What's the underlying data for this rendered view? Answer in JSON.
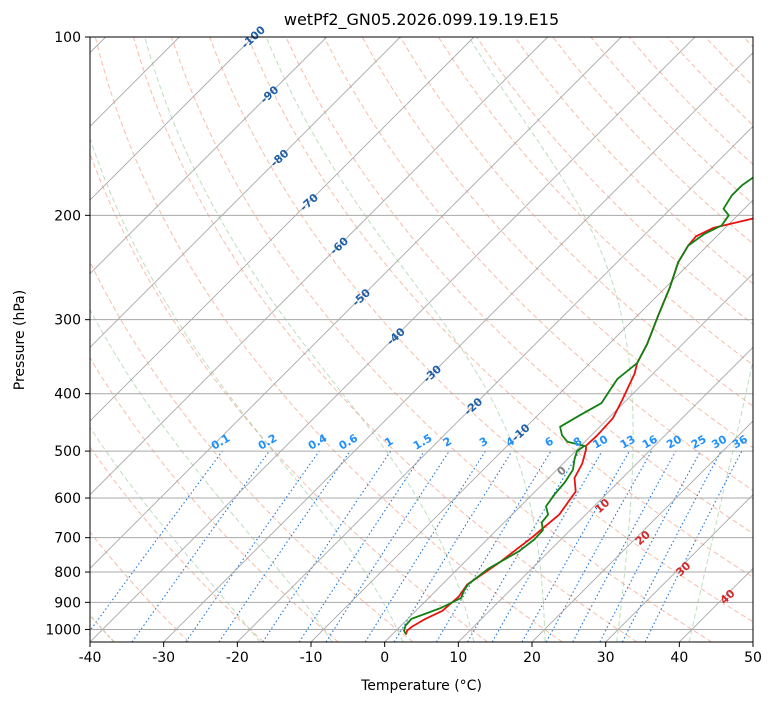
{
  "chart_data": {
    "type": "line",
    "title": "wetPf2_GN05.2026.099.19.19.E15",
    "xlabel": "Temperature (°C)",
    "ylabel": "Pressure (hPa)",
    "xlim": [
      -40,
      50
    ],
    "ylim": [
      1050,
      100
    ],
    "x_ticks": [
      -40,
      -30,
      -20,
      -10,
      0,
      10,
      20,
      30,
      40,
      50
    ],
    "y_ticks": [
      100,
      200,
      300,
      400,
      500,
      600,
      700,
      800,
      900,
      1000
    ],
    "series": [
      {
        "name": "temperature",
        "color": "#e8120f",
        "points": [
          [
            1.9,
            1020
          ],
          [
            1.5,
            1005
          ],
          [
            1.6,
            990
          ],
          [
            2.4,
            960
          ],
          [
            3.6,
            930
          ],
          [
            3.9,
            880
          ],
          [
            3.4,
            840
          ],
          [
            4.8,
            770
          ],
          [
            5.8,
            700
          ],
          [
            6.4,
            640
          ],
          [
            5.5,
            585
          ],
          [
            3.5,
            555
          ],
          [
            2.6,
            525
          ],
          [
            1.2,
            497
          ],
          [
            0.7,
            490
          ],
          [
            0.8,
            470
          ],
          [
            0.6,
            440
          ],
          [
            -0.6,
            410
          ],
          [
            -2.5,
            370
          ],
          [
            -3.6,
            355
          ],
          [
            -4.8,
            330
          ],
          [
            -7.2,
            295
          ],
          [
            -9.4,
            265
          ],
          [
            -11.7,
            240
          ],
          [
            -12.6,
            225
          ],
          [
            -12.8,
            217
          ],
          [
            -11.6,
            210
          ],
          [
            -7.8,
            203
          ],
          [
            -4,
            196
          ],
          [
            -1,
            189
          ],
          [
            3,
            177
          ],
          [
            7.3,
            165
          ],
          [
            10.8,
            154
          ],
          [
            12.5,
            148
          ],
          [
            15,
            139
          ],
          [
            18,
            129
          ],
          [
            20.5,
            120
          ],
          [
            22.3,
            113
          ],
          [
            24.7,
            104
          ],
          [
            26,
            100
          ]
        ]
      },
      {
        "name": "dewpoint",
        "color": "#128012",
        "points": [
          [
            1.9,
            1020
          ],
          [
            1.1,
            1005
          ],
          [
            0.6,
            985
          ],
          [
            0.5,
            960
          ],
          [
            3.0,
            920
          ],
          [
            4.4,
            885
          ],
          [
            3.8,
            860
          ],
          [
            3.5,
            840
          ],
          [
            4.1,
            790
          ],
          [
            5.9,
            738
          ],
          [
            6.4,
            705
          ],
          [
            6.3,
            680
          ],
          [
            5.1,
            660
          ],
          [
            4.9,
            640
          ],
          [
            3.5,
            620
          ],
          [
            3.0,
            590
          ],
          [
            2.8,
            565
          ],
          [
            2.2,
            538
          ],
          [
            0.9,
            515
          ],
          [
            0.2,
            500
          ],
          [
            0.5,
            490
          ],
          [
            -2.4,
            482
          ],
          [
            -4.0,
            470
          ],
          [
            -5.4,
            455
          ],
          [
            -4.3,
            435
          ],
          [
            -3.0,
            415
          ],
          [
            -3.6,
            395
          ],
          [
            -4.1,
            378
          ],
          [
            -3.6,
            355
          ],
          [
            -4.8,
            330
          ],
          [
            -7.2,
            295
          ],
          [
            -9.4,
            265
          ],
          [
            -11.7,
            240
          ],
          [
            -12.6,
            225
          ],
          [
            -12.0,
            215
          ],
          [
            -10.8,
            208
          ],
          [
            -11.2,
            200
          ],
          [
            -12.8,
            195
          ],
          [
            -13.5,
            185
          ],
          [
            -13.5,
            178
          ],
          [
            -12.8,
            170
          ],
          [
            -12.8,
            163
          ],
          [
            -12.2,
            150
          ],
          [
            -11.8,
            140
          ],
          [
            -9.8,
            128
          ],
          [
            -7.2,
            116
          ],
          [
            -5.0,
            107
          ],
          [
            -3.6,
            100
          ]
        ]
      }
    ],
    "isotherms": [
      -100,
      -90,
      -80,
      -70,
      -60,
      -50,
      -40,
      -30,
      -20,
      -10,
      0,
      10,
      20,
      30,
      40,
      50,
      60
    ],
    "dry_adiabats_theta_C": [
      -30,
      -20,
      -10,
      0,
      10,
      20,
      30,
      40,
      50,
      60,
      70,
      80,
      90,
      100,
      110,
      120,
      130,
      140,
      150,
      160,
      170,
      180,
      190,
      200
    ],
    "moist_adiabats_C": [
      -20,
      -10,
      0,
      10,
      20,
      30,
      40
    ],
    "mixing_ratio_lines": [
      0.1,
      0.2,
      0.4,
      0.6,
      1,
      1.5,
      2,
      3,
      4,
      6,
      8,
      10,
      13,
      16,
      20,
      25,
      30,
      36
    ],
    "isotherm_labels": [
      {
        "text": "-100",
        "p": 100
      },
      {
        "text": "-90",
        "p": 125
      },
      {
        "text": "-80",
        "p": 160
      },
      {
        "text": "-70",
        "p": 190
      },
      {
        "text": "-60",
        "p": 225
      },
      {
        "text": "-50",
        "p": 275
      },
      {
        "text": "-40",
        "p": 320
      },
      {
        "text": "-30",
        "p": 370
      },
      {
        "text": "-20",
        "p": 420
      },
      {
        "text": "-10",
        "p": 465
      }
    ],
    "wetbulb_labels": [
      {
        "text": "0",
        "T": 24,
        "p": 540
      },
      {
        "text": "10",
        "T": 29.5,
        "p": 618
      },
      {
        "text": "20",
        "T": 35,
        "p": 700
      },
      {
        "text": "30",
        "T": 40.5,
        "p": 790
      },
      {
        "text": "40",
        "T": 46.5,
        "p": 880
      }
    ]
  }
}
